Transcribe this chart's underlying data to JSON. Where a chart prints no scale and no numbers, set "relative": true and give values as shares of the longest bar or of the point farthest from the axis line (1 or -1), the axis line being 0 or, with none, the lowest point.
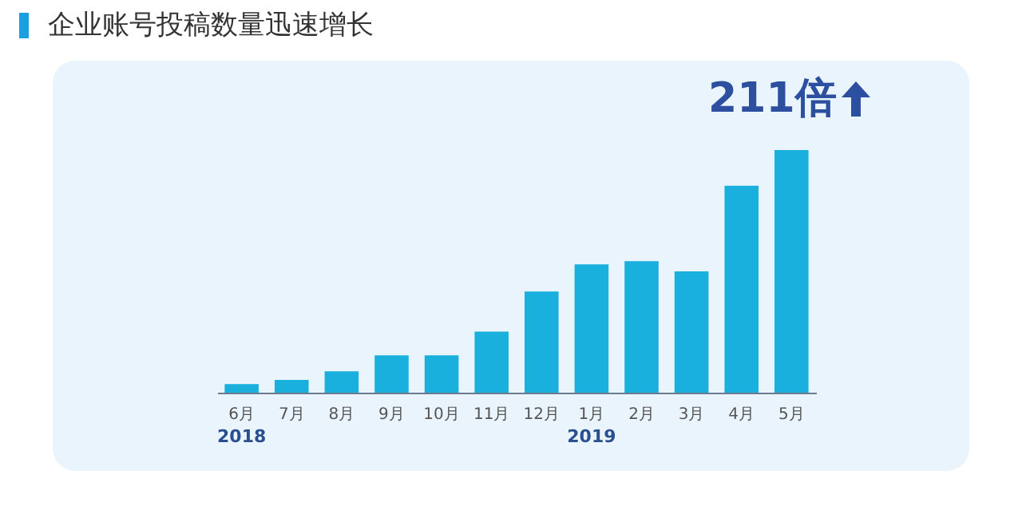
{
  "chart_data": {
    "type": "bar",
    "title": "企业账号投稿数量迅速增长",
    "relative": true,
    "color": "#19b0de",
    "categories": [
      "6月",
      "7月",
      "8月",
      "9月",
      "10月",
      "11月",
      "12月",
      "1月",
      "2月",
      "3月",
      "4月",
      "5月"
    ],
    "values": [
      0.035,
      0.053,
      0.088,
      0.154,
      0.154,
      0.252,
      0.417,
      0.529,
      0.542,
      0.5,
      0.853,
      1
    ],
    "annotations": [
      "2018",
      "2019",
      {
        "text": "211倍",
        "x": "5月",
        "y": 1
      }
    ]
  }
}
